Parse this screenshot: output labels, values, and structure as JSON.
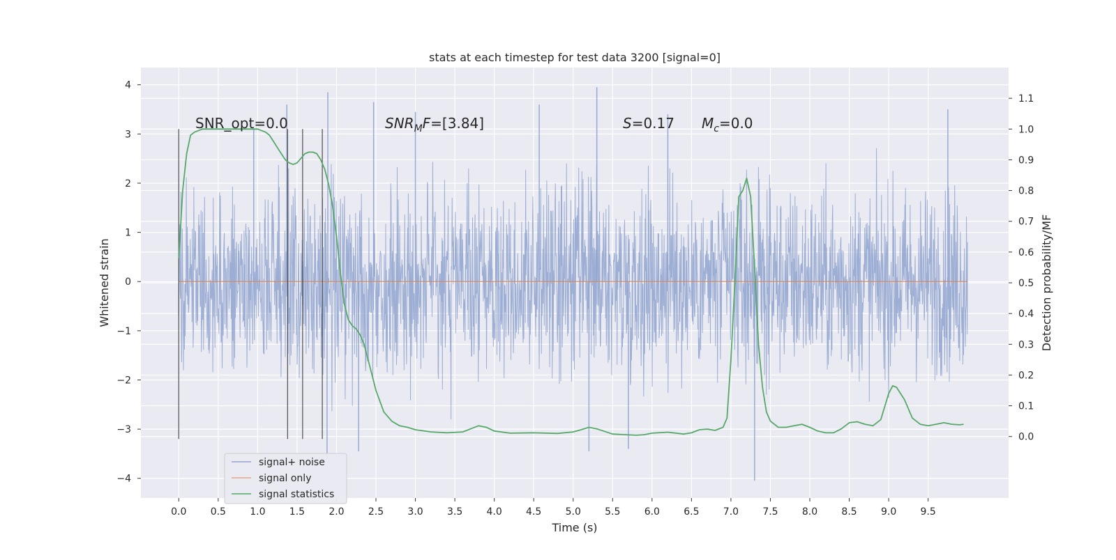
{
  "chart_data": {
    "type": "line",
    "title": "stats at each timestep for test data 3200 [signal=0]",
    "xlabel": "Time (s)",
    "ylabel": "Whitened strain",
    "ylabel_right": "Detection probability/MF",
    "xlim": [
      -0.48,
      10.52
    ],
    "ylim": [
      -4.4,
      4.35
    ],
    "ylim_right": [
      -0.2,
      1.2
    ],
    "x_ticks": [
      "0.0",
      "0.5",
      "1.0",
      "1.5",
      "2.0",
      "2.5",
      "3.0",
      "3.5",
      "4.0",
      "4.5",
      "5.0",
      "5.5",
      "6.0",
      "6.5",
      "7.0",
      "7.5",
      "8.0",
      "8.5",
      "9.0",
      "9.5"
    ],
    "y_ticks": [
      "4",
      "3",
      "2",
      "1",
      "0",
      "−1",
      "−2",
      "−3",
      "−4"
    ],
    "y_right_ticks": [
      "1.1",
      "1.0",
      "0.9",
      "0.8",
      "0.7",
      "0.6",
      "0.5",
      "0.4",
      "0.3",
      "0.2",
      "0.1",
      "0.0"
    ],
    "grid": true,
    "legend_placement": "lower-left",
    "legend": [
      {
        "label": "signal+ noise",
        "color": "#8fa3cf"
      },
      {
        "label": "signal only",
        "color": "#e8a58a"
      },
      {
        "label": "signal statistics",
        "color": "#55a868"
      }
    ],
    "annotations": {
      "snr_opt": "SNR_opt=0.0",
      "snr_mf_sym": "SNR",
      "snr_mf_sub": "M",
      "snr_mf_rest": "F",
      "snr_mf_val": "=[3.84]",
      "s_sym": "S",
      "s_val": "=0.17",
      "mc_sym": "M",
      "mc_sub": "c",
      "mc_val": "=0.0"
    },
    "vertical_markers": [
      0.0,
      1.38,
      1.57,
      1.82
    ],
    "series": [
      {
        "name": "signal+ noise",
        "color": "#8fa3cf",
        "x_range": [
          0.0,
          10.0
        ],
        "typical_range": [
          -2.0,
          2.0
        ],
        "extremes": [
          {
            "x": 0.95,
            "y": 3.1
          },
          {
            "x": 1.37,
            "y": 3.6
          },
          {
            "x": 1.89,
            "y": 3.85
          },
          {
            "x": 2.47,
            "y": 3.65
          },
          {
            "x": 3.0,
            "y": 3.45
          },
          {
            "x": 4.57,
            "y": 3.6
          },
          {
            "x": 5.3,
            "y": 3.95
          },
          {
            "x": 6.2,
            "y": 3.4
          },
          {
            "x": 9.75,
            "y": 3.5
          },
          {
            "x": 1.88,
            "y": -3.6
          },
          {
            "x": 2.28,
            "y": -3.45
          },
          {
            "x": 5.2,
            "y": -3.45
          },
          {
            "x": 5.7,
            "y": -3.4
          },
          {
            "x": 7.3,
            "y": -4.05
          }
        ]
      },
      {
        "name": "signal only",
        "color": "#dd8452",
        "x": [
          0.0,
          10.0
        ],
        "y": [
          0.0,
          0.0
        ]
      },
      {
        "name": "signal statistics",
        "color": "#55a868",
        "x": [
          0.0,
          0.05,
          0.1,
          0.15,
          0.2,
          0.3,
          0.5,
          0.8,
          1.0,
          1.1,
          1.15,
          1.2,
          1.25,
          1.3,
          1.35,
          1.4,
          1.45,
          1.5,
          1.55,
          1.6,
          1.65,
          1.7,
          1.75,
          1.8,
          1.85,
          1.9,
          1.95,
          2.0,
          2.05,
          2.1,
          2.15,
          2.2,
          2.25,
          2.3,
          2.35,
          2.4,
          2.45,
          2.5,
          2.6,
          2.7,
          2.8,
          2.9,
          3.0,
          3.2,
          3.4,
          3.6,
          3.7,
          3.8,
          3.9,
          4.0,
          4.2,
          4.5,
          4.8,
          5.0,
          5.1,
          5.2,
          5.3,
          5.5,
          5.8,
          5.9,
          6.0,
          6.2,
          6.4,
          6.5,
          6.6,
          6.7,
          6.8,
          6.9,
          6.95,
          7.0,
          7.05,
          7.1,
          7.15,
          7.2,
          7.25,
          7.3,
          7.35,
          7.4,
          7.45,
          7.5,
          7.6,
          7.7,
          7.8,
          7.9,
          8.0,
          8.1,
          8.2,
          8.3,
          8.4,
          8.5,
          8.6,
          8.7,
          8.8,
          8.9,
          9.0,
          9.05,
          9.1,
          9.2,
          9.3,
          9.4,
          9.5,
          9.6,
          9.7,
          9.8,
          9.9,
          9.95
        ],
        "y": [
          0.58,
          0.8,
          0.92,
          0.98,
          0.99,
          1.0,
          1.0,
          1.0,
          1.0,
          0.99,
          0.98,
          0.96,
          0.94,
          0.92,
          0.9,
          0.89,
          0.885,
          0.89,
          0.905,
          0.92,
          0.925,
          0.925,
          0.92,
          0.9,
          0.87,
          0.82,
          0.75,
          0.65,
          0.53,
          0.43,
          0.38,
          0.36,
          0.35,
          0.33,
          0.3,
          0.25,
          0.2,
          0.15,
          0.08,
          0.05,
          0.035,
          0.03,
          0.022,
          0.015,
          0.012,
          0.015,
          0.025,
          0.035,
          0.03,
          0.018,
          0.011,
          0.012,
          0.01,
          0.015,
          0.022,
          0.03,
          0.025,
          0.008,
          0.004,
          0.006,
          0.011,
          0.014,
          0.008,
          0.012,
          0.022,
          0.024,
          0.02,
          0.03,
          0.06,
          0.25,
          0.5,
          0.78,
          0.8,
          0.84,
          0.78,
          0.55,
          0.3,
          0.16,
          0.08,
          0.05,
          0.03,
          0.03,
          0.035,
          0.04,
          0.03,
          0.018,
          0.012,
          0.012,
          0.025,
          0.045,
          0.048,
          0.04,
          0.035,
          0.055,
          0.14,
          0.165,
          0.16,
          0.12,
          0.06,
          0.04,
          0.035,
          0.04,
          0.045,
          0.04,
          0.038,
          0.04
        ]
      }
    ]
  }
}
